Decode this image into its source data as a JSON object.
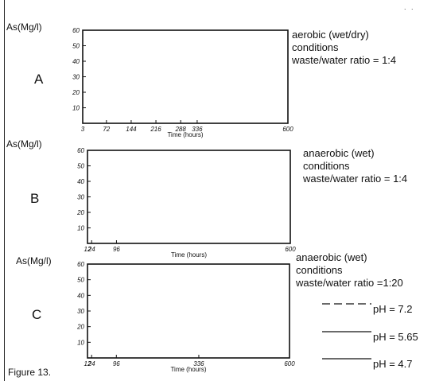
{
  "figure_caption": "Figure 13.",
  "corner_mark": ". .",
  "legend": [
    {
      "label": "pH = 7.2",
      "style": "dashed"
    },
    {
      "label": "pH = 5.65",
      "style": "solid"
    },
    {
      "label": "pH = 4.7",
      "style": "solid"
    }
  ],
  "panels": [
    {
      "letter": "A",
      "ylabel": "As(Mg/l)",
      "condition_lines": [
        "aerobic (wet/dry)",
        "conditions",
        "waste/water ratio = 1:4"
      ]
    },
    {
      "letter": "B",
      "ylabel": "As(Mg/l)",
      "condition_lines": [
        "anaerobic (wet)",
        "conditions",
        "waste/water ratio = 1:4"
      ]
    },
    {
      "letter": "C",
      "ylabel": "As(Mg/l)",
      "condition_lines": [
        "anaerobic (wet)",
        "conditions",
        "waste/water ratio =1:20"
      ]
    }
  ],
  "chart_data": [
    {
      "type": "line",
      "title": "",
      "ylabel": "As(Mg/l)",
      "xlabel": "Time (hours)",
      "ylim": [
        0,
        60
      ],
      "xlim": [
        3,
        600
      ],
      "yticks": [
        10,
        20,
        30,
        40,
        50,
        60
      ],
      "xticks": [
        3,
        72,
        144,
        216,
        288,
        336,
        600
      ],
      "series": []
    },
    {
      "type": "line",
      "title": "",
      "ylabel": "As(Mg/l)",
      "xlabel": "Time (hours)",
      "ylim": [
        0,
        60
      ],
      "xlim": [
        12,
        600
      ],
      "yticks": [
        10,
        20,
        30,
        40,
        50,
        60
      ],
      "xticks": [
        12,
        24,
        96,
        600
      ],
      "series": []
    },
    {
      "type": "line",
      "title": "",
      "ylabel": "As(Mg/l)",
      "xlabel": "Time (hours)",
      "ylim": [
        0,
        60
      ],
      "xlim": [
        12,
        600
      ],
      "yticks": [
        10,
        20,
        30,
        40,
        50,
        60
      ],
      "xticks": [
        12,
        24,
        96,
        336,
        600
      ],
      "series": []
    }
  ]
}
